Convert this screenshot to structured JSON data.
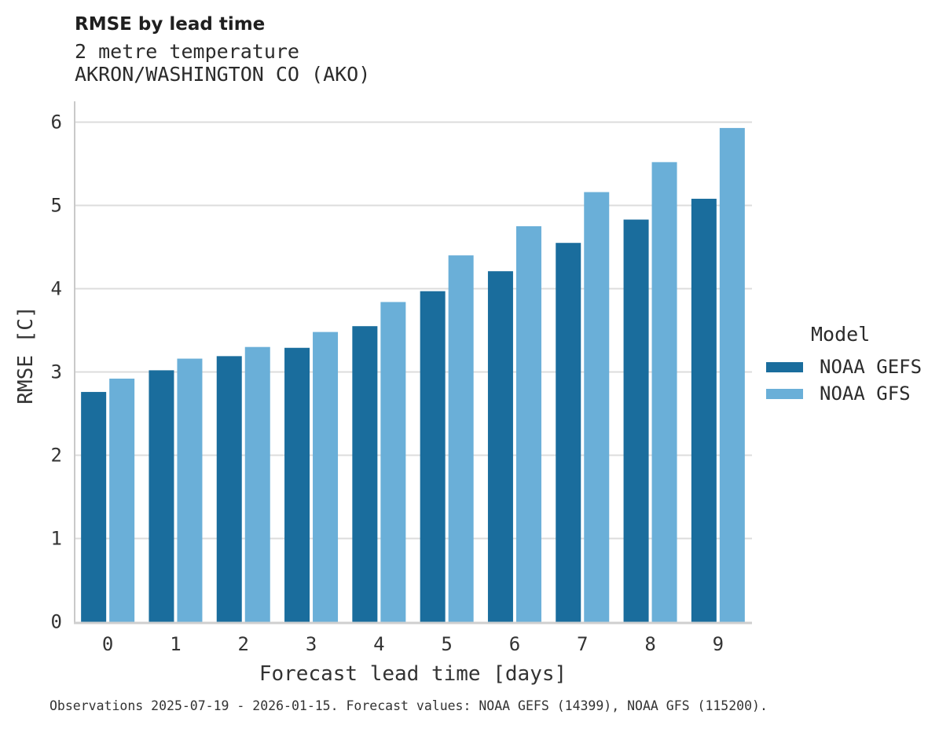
{
  "header": {
    "title": "RMSE by lead time",
    "subtitle_line1": "2 metre temperature",
    "subtitle_line2": "AKRON/WASHINGTON CO (AKO)"
  },
  "chart_data": {
    "type": "bar",
    "title": "RMSE by lead time",
    "subtitle": [
      "2 metre temperature",
      "AKRON/WASHINGTON CO (AKO)"
    ],
    "categories": [
      "0",
      "1",
      "2",
      "3",
      "4",
      "5",
      "6",
      "7",
      "8",
      "9"
    ],
    "series": [
      {
        "name": "NOAA GEFS",
        "color": "#1a6d9d",
        "values": [
          2.76,
          3.02,
          3.19,
          3.29,
          3.55,
          3.97,
          4.21,
          4.55,
          4.83,
          5.08
        ]
      },
      {
        "name": "NOAA GFS",
        "color": "#6aafd8",
        "values": [
          2.92,
          3.16,
          3.3,
          3.48,
          3.84,
          4.4,
          4.75,
          5.16,
          5.52,
          5.93
        ]
      }
    ],
    "xlabel": "Forecast lead time [days]",
    "ylabel": "RMSE [C]",
    "ylim": [
      0,
      6
    ],
    "yticks": [
      0,
      1,
      2,
      3,
      4,
      5,
      6
    ],
    "grid": true,
    "legend_title": "Model",
    "legend_position": "right"
  },
  "legend": {
    "title": "Model",
    "items": [
      {
        "label": "NOAA GEFS",
        "color": "#1a6d9d"
      },
      {
        "label": "NOAA GFS",
        "color": "#6aafd8"
      }
    ]
  },
  "footer": {
    "caption": "Observations 2025-07-19 - 2026-01-15. Forecast values: NOAA GEFS (14399), NOAA GFS (115200)."
  },
  "colors": {
    "gefs_bar": "#1a6d9d",
    "gfs_bar": "#6aafd8",
    "gridline": "#dcdcdc",
    "spine": "#c9c9c9",
    "tick_text": "#333333",
    "title_text": "#1f1f1f"
  }
}
